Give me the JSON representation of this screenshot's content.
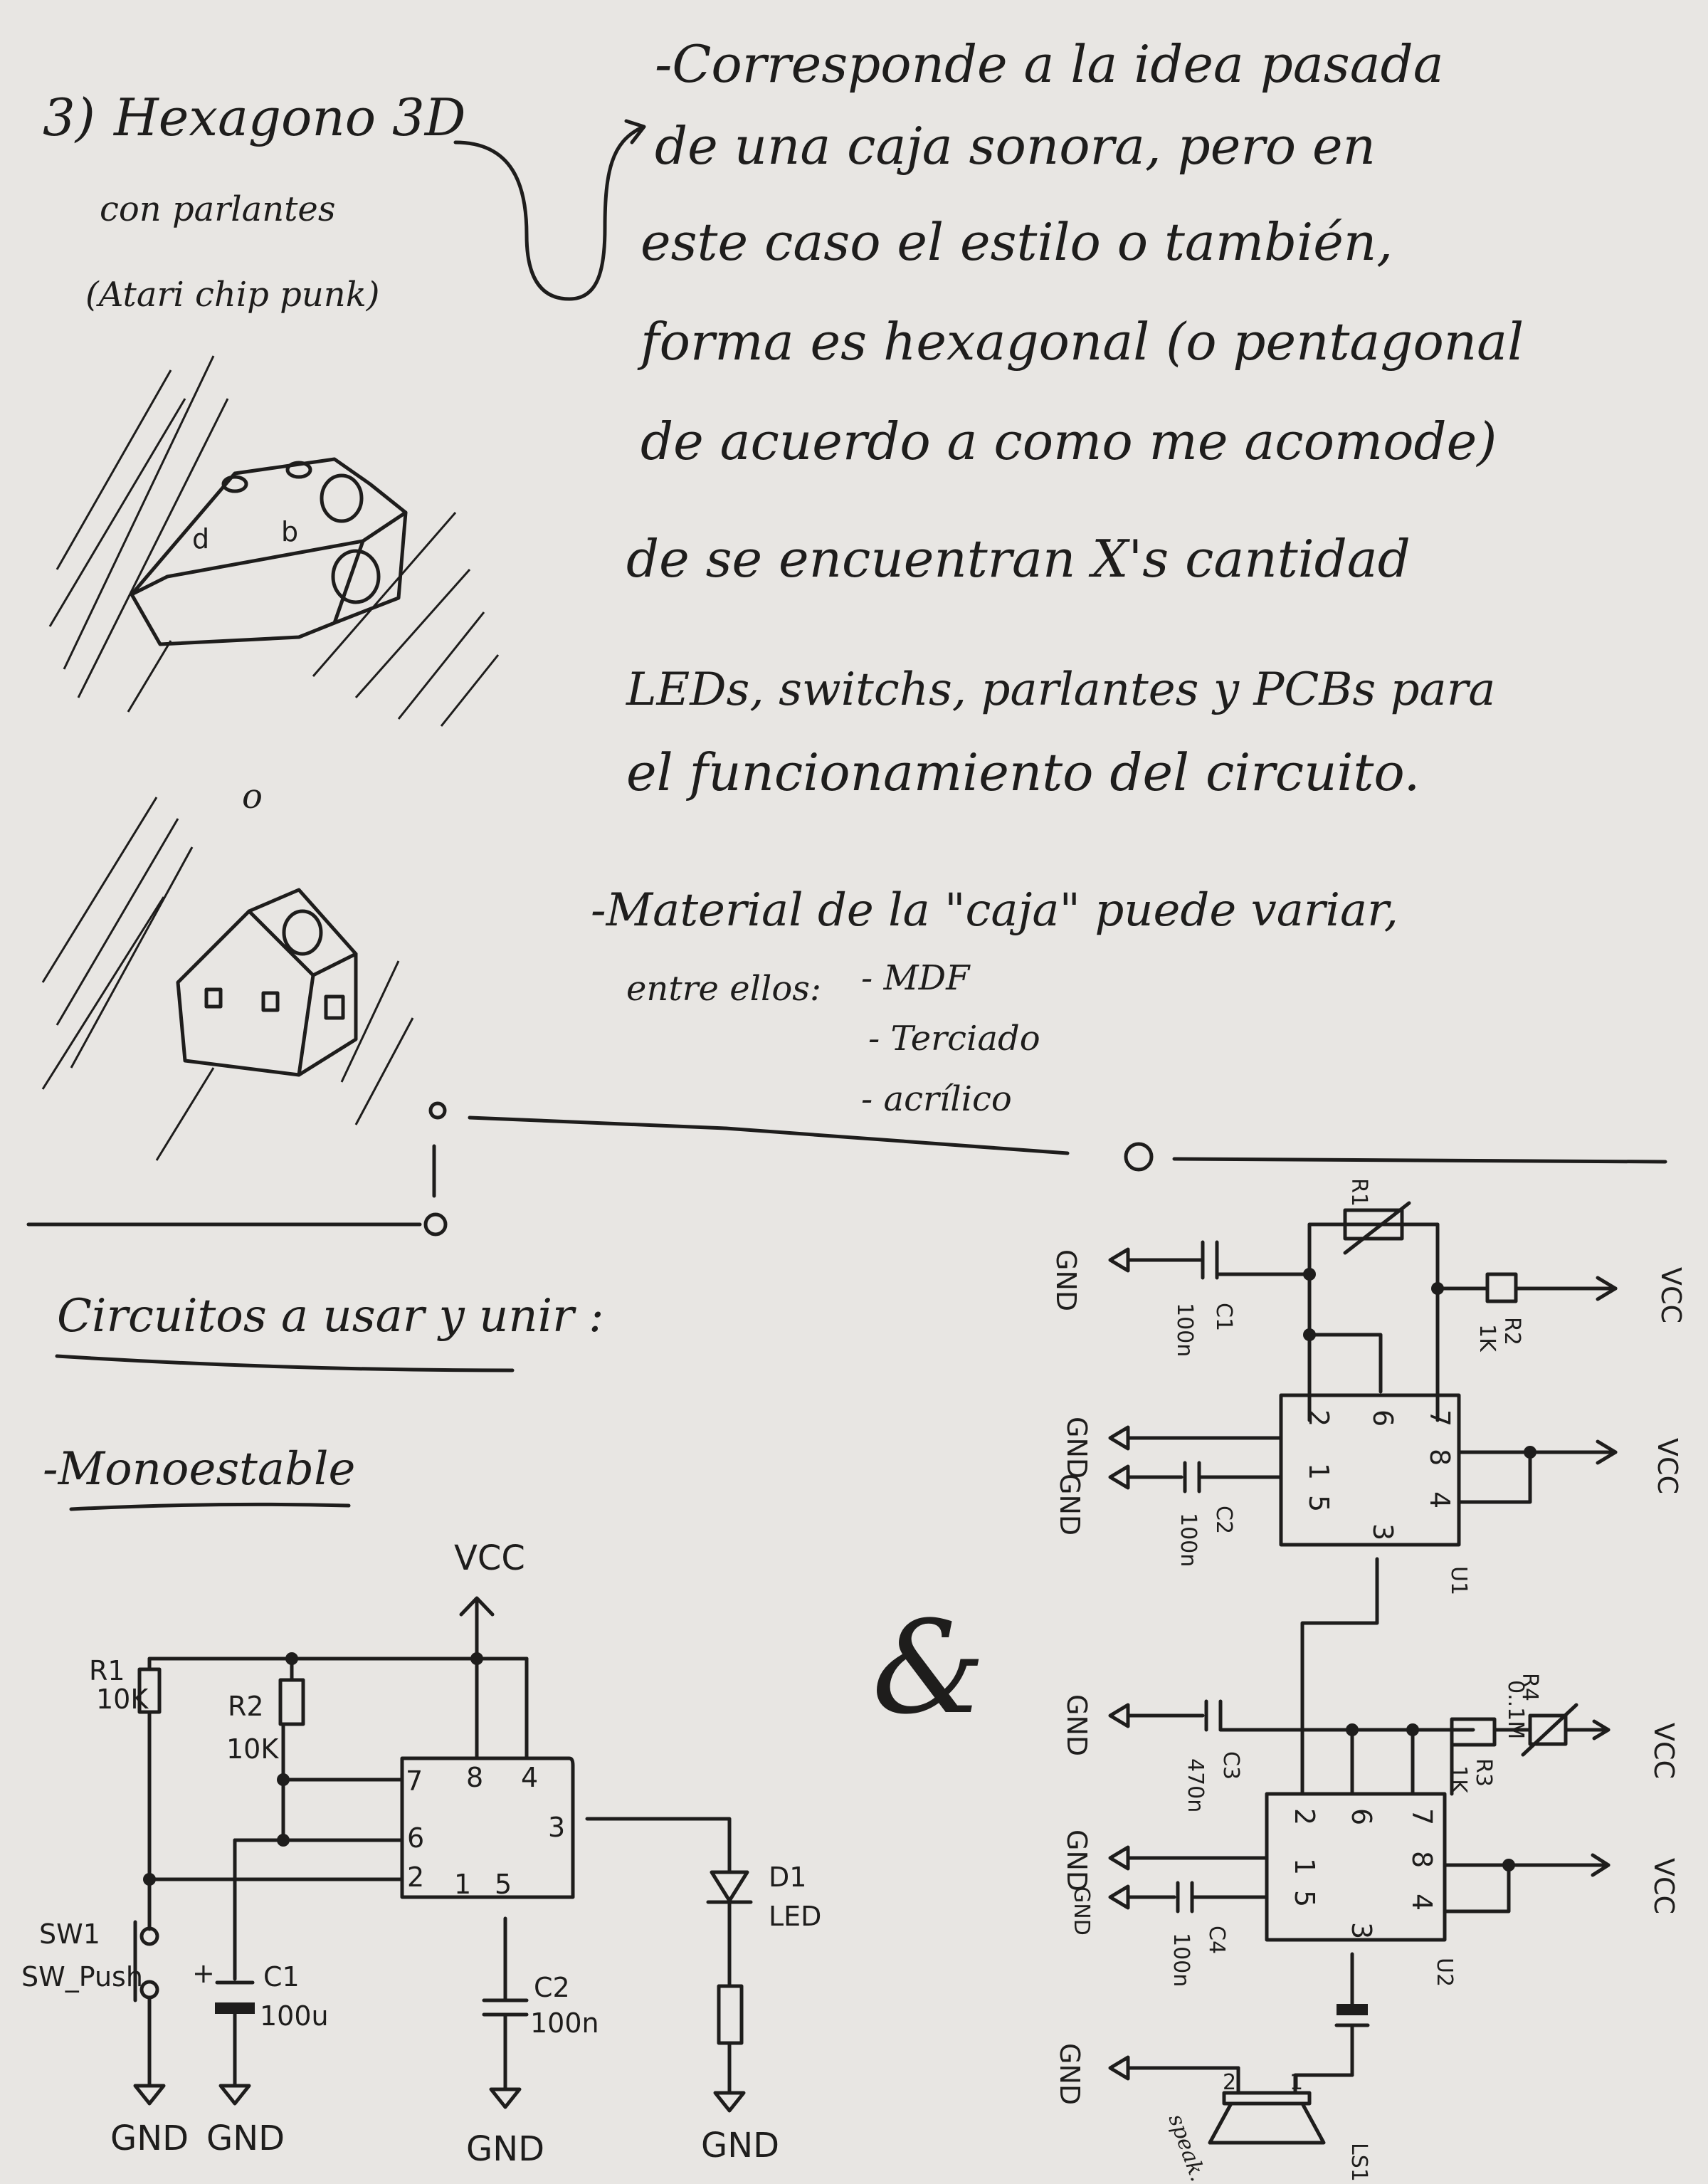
{
  "heading": {
    "number": "3)",
    "title_line1": "Hexagono 3D",
    "title_line2": "con parlantes",
    "title_line3": "(Atari chip punk)"
  },
  "description": {
    "lines": [
      "-Corresponde a la idea pasada",
      "de una caja sonora, pero en",
      "este caso el estilo o también,",
      "forma es hexagonal (o pentagonal",
      "de acuerdo a como me acomode)",
      "de se encuentran X's cantidad",
      "LEDs, switchs, parlantes y PCBs para",
      "el funcionamiento del circuito."
    ],
    "material_intro": "-Material de la \"caja\" puede variar,",
    "material_lead": "entre ellos:",
    "materials": [
      "- MDF",
      "- Terciado",
      "- acrílico"
    ]
  },
  "sketch_separator": "o",
  "circuits_heading": "Circuitos a usar y unir :",
  "monostable_heading": "-Monoestable",
  "ampersand": "&",
  "mono_circuit": {
    "vcc": "VCC",
    "r1": "R1",
    "r1_val": "10K",
    "r2": "R2",
    "r2_val": "10K",
    "pins_top": [
      "7",
      "8",
      "4"
    ],
    "pins_left": [
      "6",
      "2"
    ],
    "pin_out": "3",
    "pins_bottom": [
      "1",
      "5"
    ],
    "d1": "D1",
    "d1_val": "LED",
    "sw": "SW1",
    "sw_val": "SW_Push",
    "c1": "C1",
    "c1_val": "100u",
    "c2": "C2",
    "c2_val": "100n",
    "gnd": "GND"
  },
  "astable_circuit": {
    "gnd": "GND",
    "vcc": "VCC",
    "c1": "C1",
    "c1_val": "100n",
    "r1": "R1",
    "r2": "R2",
    "r2_val": "1K",
    "u1": "U1",
    "c2": "C2",
    "c2_val": "100n",
    "c3": "C3",
    "c3_val": "470n",
    "r3": "R3",
    "r3_val": "1K",
    "r4": "R4",
    "r4_val": "0..1M",
    "c4": "C4",
    "c4_val": "100n",
    "u2": "U2",
    "ls1": "LS1",
    "speaker_note": "speak.",
    "pins_row1": [
      "2",
      "6",
      "7"
    ],
    "pins_row2": [
      "1",
      "5",
      "8",
      "4"
    ],
    "pin_out": "3",
    "ls_pins": [
      "2",
      "1"
    ]
  }
}
